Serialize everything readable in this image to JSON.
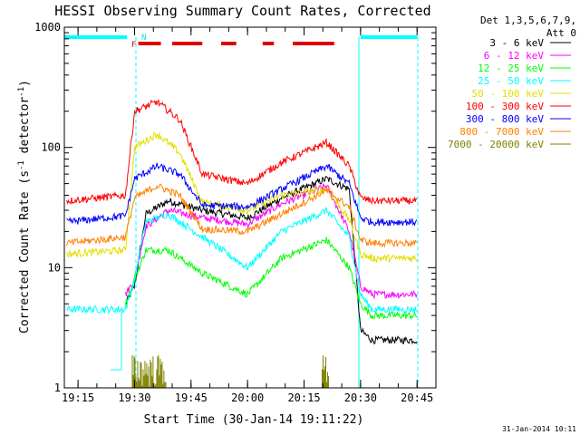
{
  "chart_data": {
    "type": "line",
    "title": "HESSI Observing Summary Count Rates, Corrected",
    "xlabel": "Start Time (30-Jan-14 19:11:22)",
    "ylabel_main": "Corrected Count Rate (s",
    "ylabel_sup1": "-1",
    "ylabel_mid": " detector",
    "ylabel_sup2": "-1",
    "ylabel_end": ")",
    "yscale": "log",
    "xlim": [
      "19:11:22",
      "20:50:00"
    ],
    "ylim": [
      1,
      1000
    ],
    "x_ticks": [
      "19:15",
      "19:30",
      "19:45",
      "20:00",
      "20:15",
      "20:30",
      "20:45"
    ],
    "y_ticks": [
      "1",
      "10",
      "100",
      "1000"
    ],
    "footer_date": "31-Jan-2014 10:11",
    "legend": {
      "header1": "Det 1,3,5,6,7,9,",
      "header2": "Att 0",
      "position": "right"
    },
    "flags": [
      {
        "label": "F",
        "color": "#e00000"
      },
      {
        "label": "N",
        "color": "#00e0e0"
      }
    ],
    "flare_bar_segments": [
      [
        "19:31",
        "19:37"
      ],
      [
        "19:40",
        "19:48"
      ],
      [
        "19:53",
        "19:57"
      ],
      [
        "20:04",
        "20:07"
      ],
      [
        "20:12",
        "20:23"
      ]
    ],
    "night_bar_segments": [
      [
        "19:11:22",
        "19:28"
      ],
      [
        "20:30",
        "20:45"
      ]
    ],
    "series": [
      {
        "name": "3 - 6 keV",
        "color": "#000000",
        "values": [
          [
            19.2,
            null
          ],
          [
            19.46,
            5
          ],
          [
            19.5,
            7
          ],
          [
            19.55,
            28
          ],
          [
            19.65,
            36
          ],
          [
            19.8,
            30
          ],
          [
            20.0,
            26
          ],
          [
            20.15,
            38
          ],
          [
            20.35,
            55
          ],
          [
            20.45,
            45
          ],
          [
            20.5,
            3
          ],
          [
            20.55,
            2.5
          ]
        ]
      },
      {
        "name": "6 - 12 keV",
        "color": "#ff00ff",
        "values": [
          [
            19.46,
            6
          ],
          [
            19.5,
            8
          ],
          [
            19.55,
            22
          ],
          [
            19.65,
            30
          ],
          [
            19.8,
            26
          ],
          [
            20.0,
            23
          ],
          [
            20.15,
            34
          ],
          [
            20.35,
            48
          ],
          [
            20.45,
            20
          ],
          [
            20.5,
            7
          ],
          [
            20.55,
            6
          ]
        ]
      },
      {
        "name": "12 - 25 keV",
        "color": "#00ff00",
        "values": [
          [
            19.46,
            5
          ],
          [
            19.55,
            14
          ],
          [
            19.65,
            14
          ],
          [
            19.8,
            9
          ],
          [
            20.0,
            6
          ],
          [
            20.15,
            12
          ],
          [
            20.35,
            17
          ],
          [
            20.45,
            10
          ],
          [
            20.5,
            5
          ],
          [
            20.55,
            4
          ]
        ]
      },
      {
        "name": "25 - 50 keV",
        "color": "#00ffff",
        "values": [
          [
            19.2,
            4.5
          ],
          [
            19.46,
            4.5
          ],
          [
            19.5,
            8
          ],
          [
            19.55,
            24
          ],
          [
            19.65,
            28
          ],
          [
            19.8,
            18
          ],
          [
            20.0,
            10
          ],
          [
            20.15,
            20
          ],
          [
            20.35,
            30
          ],
          [
            20.45,
            18
          ],
          [
            20.5,
            6
          ],
          [
            20.55,
            4.5
          ]
        ]
      },
      {
        "name": "50 - 100 keV",
        "color": "#e0e000",
        "values": [
          [
            19.2,
            13
          ],
          [
            19.46,
            14
          ],
          [
            19.5,
            100
          ],
          [
            19.6,
            130
          ],
          [
            19.7,
            90
          ],
          [
            19.8,
            35
          ],
          [
            20.0,
            30
          ],
          [
            20.15,
            40
          ],
          [
            20.35,
            45
          ],
          [
            20.45,
            25
          ],
          [
            20.5,
            13
          ],
          [
            20.55,
            12
          ]
        ]
      },
      {
        "name": "100 - 300 keV",
        "color": "#ff0000",
        "values": [
          [
            19.2,
            36
          ],
          [
            19.46,
            40
          ],
          [
            19.5,
            200
          ],
          [
            19.6,
            240
          ],
          [
            19.7,
            170
          ],
          [
            19.8,
            60
          ],
          [
            20.0,
            50
          ],
          [
            20.15,
            75
          ],
          [
            20.35,
            110
          ],
          [
            20.45,
            70
          ],
          [
            20.5,
            38
          ],
          [
            20.55,
            36
          ]
        ]
      },
      {
        "name": "300 - 800 keV",
        "color": "#0000ff",
        "values": [
          [
            19.2,
            24
          ],
          [
            19.46,
            27
          ],
          [
            19.5,
            55
          ],
          [
            19.6,
            70
          ],
          [
            19.7,
            60
          ],
          [
            19.8,
            33
          ],
          [
            20.0,
            32
          ],
          [
            20.15,
            45
          ],
          [
            20.35,
            70
          ],
          [
            20.45,
            50
          ],
          [
            20.5,
            26
          ],
          [
            20.55,
            24
          ]
        ]
      },
      {
        "name": "800 - 7000 keV",
        "color": "#ff8000",
        "values": [
          [
            19.2,
            16
          ],
          [
            19.46,
            18
          ],
          [
            19.5,
            38
          ],
          [
            19.6,
            48
          ],
          [
            19.7,
            40
          ],
          [
            19.8,
            21
          ],
          [
            20.0,
            20
          ],
          [
            20.15,
            28
          ],
          [
            20.35,
            44
          ],
          [
            20.45,
            32
          ],
          [
            20.5,
            17
          ],
          [
            20.55,
            16
          ]
        ]
      },
      {
        "name": "7000 - 20000 keV",
        "color": "#808000",
        "values": [
          [
            19.49,
            1.2
          ],
          [
            19.55,
            1.8
          ],
          [
            19.6,
            1.5
          ],
          [
            20.35,
            1.5
          ]
        ]
      }
    ]
  }
}
